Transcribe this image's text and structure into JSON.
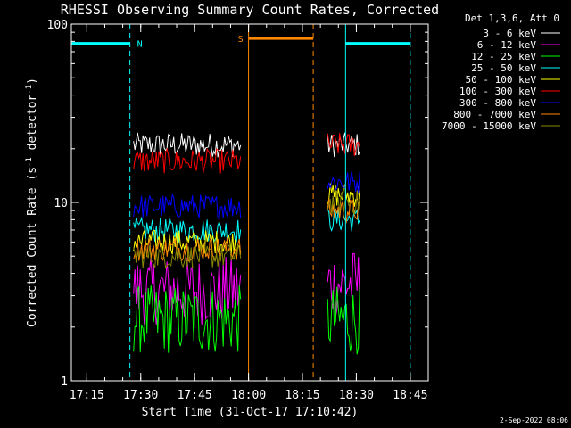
{
  "chart_data": {
    "type": "line",
    "title": "RHESSI Observing Summary Count Rates, Corrected",
    "xlabel": "Start Time (31-Oct-17 17:10:42)",
    "ylabel": "Corrected Count Rate (s",
    "ylabel_sup": "-1",
    "ylabel_mid": " detector",
    "ylabel_end": ")",
    "ylim": [
      1,
      100
    ],
    "y_scale": "log",
    "xlim": [
      "17:10:42",
      "18:50:00"
    ],
    "x_ticks": [
      {
        "t": "17:15",
        "label": "17:15"
      },
      {
        "t": "17:30",
        "label": "17:30"
      },
      {
        "t": "17:45",
        "label": "17:45"
      },
      {
        "t": "18:00",
        "label": "18:00"
      },
      {
        "t": "18:15",
        "label": "18:15"
      },
      {
        "t": "18:30",
        "label": "18:30"
      },
      {
        "t": "18:45",
        "label": "18:45"
      }
    ],
    "y_ticks": [
      {
        "v": 1,
        "label": "1"
      },
      {
        "v": 10,
        "label": "10"
      },
      {
        "v": 100,
        "label": "100"
      }
    ],
    "legend_title": "Det 1,3,6, Att 0",
    "legend_position": "top-right, outside plot",
    "intervals": [
      {
        "t0": "17:28",
        "t1": "17:58"
      },
      {
        "t0": "18:22",
        "t1": "18:31"
      }
    ],
    "series": [
      {
        "name": "3 - 6 keV",
        "color": "#ffffff",
        "level1": 21,
        "level2": 21
      },
      {
        "name": "6 - 12 keV",
        "color": "#ff00ff",
        "level1": 3.2,
        "level2": 3.5
      },
      {
        "name": "12 - 25 keV",
        "color": "#00ff00",
        "level1": 2.2,
        "level2": 2.2
      },
      {
        "name": "25 - 50 keV",
        "color": "#00ffff",
        "level1": 7,
        "level2": 8
      },
      {
        "name": "50 - 100 keV",
        "color": "#ffff00",
        "level1": 6,
        "level2": 11
      },
      {
        "name": "100 - 300 keV",
        "color": "#ff0000",
        "level1": 17,
        "level2": 21
      },
      {
        "name": "300 - 800 keV",
        "color": "#0000ff",
        "level1": 9.5,
        "level2": 13
      },
      {
        "name": "800 - 7000 keV",
        "color": "#ff8800",
        "level1": 5.5,
        "level2": 9
      },
      {
        "name": "7000 - 15000 keV",
        "color": "#888800",
        "level1": 5,
        "level2": 10
      }
    ],
    "night_bars": [
      {
        "t0": "17:10:42",
        "t1": "17:27",
        "label": "N",
        "color": "#00ffff"
      },
      {
        "t0": "18:27",
        "t1": "18:45",
        "label": "",
        "color": "#00ffff"
      }
    ],
    "saa_bars": [
      {
        "t0": "18:00",
        "t1": "18:18",
        "label": "S",
        "color": "#ff8800"
      }
    ],
    "footer_date": "2-Sep-2022 08:06"
  }
}
